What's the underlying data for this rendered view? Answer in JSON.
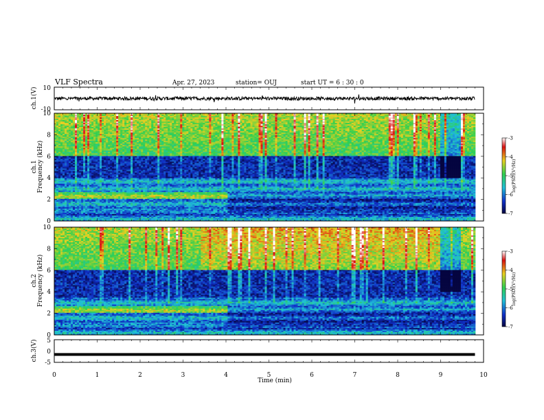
{
  "header": {
    "title": "VLF Spectra",
    "date": "Apr. 27, 2023",
    "station": "station= OUJ",
    "start_time": "start UT =   6 : 30 : 0"
  },
  "colors": {
    "background": "#ffffff",
    "axes": "#000000",
    "spectrogram_low": "#0a1aa0",
    "spectrogram_high": "#b01010"
  },
  "chart_data": [
    {
      "type": "line",
      "id": "ch1-waveform",
      "ylabel": "ch.1(V)",
      "ylim": [
        -10,
        10
      ],
      "ytick_labels": [
        "10",
        "-10"
      ],
      "xlim": [
        0,
        10
      ],
      "description_series": {
        "baseline": 0,
        "noise_amplitude": 1.5
      }
    },
    {
      "type": "heatmap",
      "id": "ch1-spectrogram",
      "ylabel": "ch.1",
      "ylabel2": "Frequency (kHz)",
      "ylim": [
        0,
        10
      ],
      "ytick_labels": [
        "10",
        "8",
        "6",
        "4",
        "2",
        "0"
      ],
      "xlim": [
        0,
        10
      ],
      "colorbar": {
        "label": "log(PSD)(V²/Hz)",
        "range": [
          -7,
          -3
        ],
        "tick_labels": [
          "-3",
          "-4",
          "-5",
          "-6",
          "-7"
        ]
      },
      "features": {
        "quiet_band_khz": [
          4,
          6
        ],
        "step_change_min": 4.05,
        "data_end_min": 9.8
      }
    },
    {
      "type": "heatmap",
      "id": "ch2-spectrogram",
      "ylabel": "ch.2",
      "ylabel2": "Frequency (kHz)",
      "ylim": [
        0,
        10
      ],
      "ytick_labels": [
        "10",
        "8",
        "6",
        "4",
        "2",
        "0"
      ],
      "xlim": [
        0,
        10
      ],
      "colorbar": {
        "label": "log(PSD)(V²/Hz)",
        "range": [
          -7,
          -3
        ],
        "tick_labels": [
          "-3",
          "-4",
          "-5",
          "-6",
          "-7"
        ]
      },
      "features": {
        "quiet_band_khz": [
          3.5,
          6
        ],
        "step_change_min": 4.05,
        "data_end_min": 9.8
      }
    },
    {
      "type": "line",
      "id": "ch3-waveform",
      "ylabel": "ch.3(V)",
      "ylim": [
        -5,
        5
      ],
      "ytick_labels": [
        "5",
        "0",
        "-5"
      ],
      "xlim": [
        0,
        10
      ],
      "xlabel": "Time (min)",
      "xtick_labels": [
        "0",
        "1",
        "2",
        "3",
        "4",
        "5",
        "6",
        "7",
        "8",
        "9",
        "10"
      ],
      "description_series": {
        "baseline": -1.5,
        "noise_amplitude": 0.3
      }
    }
  ]
}
